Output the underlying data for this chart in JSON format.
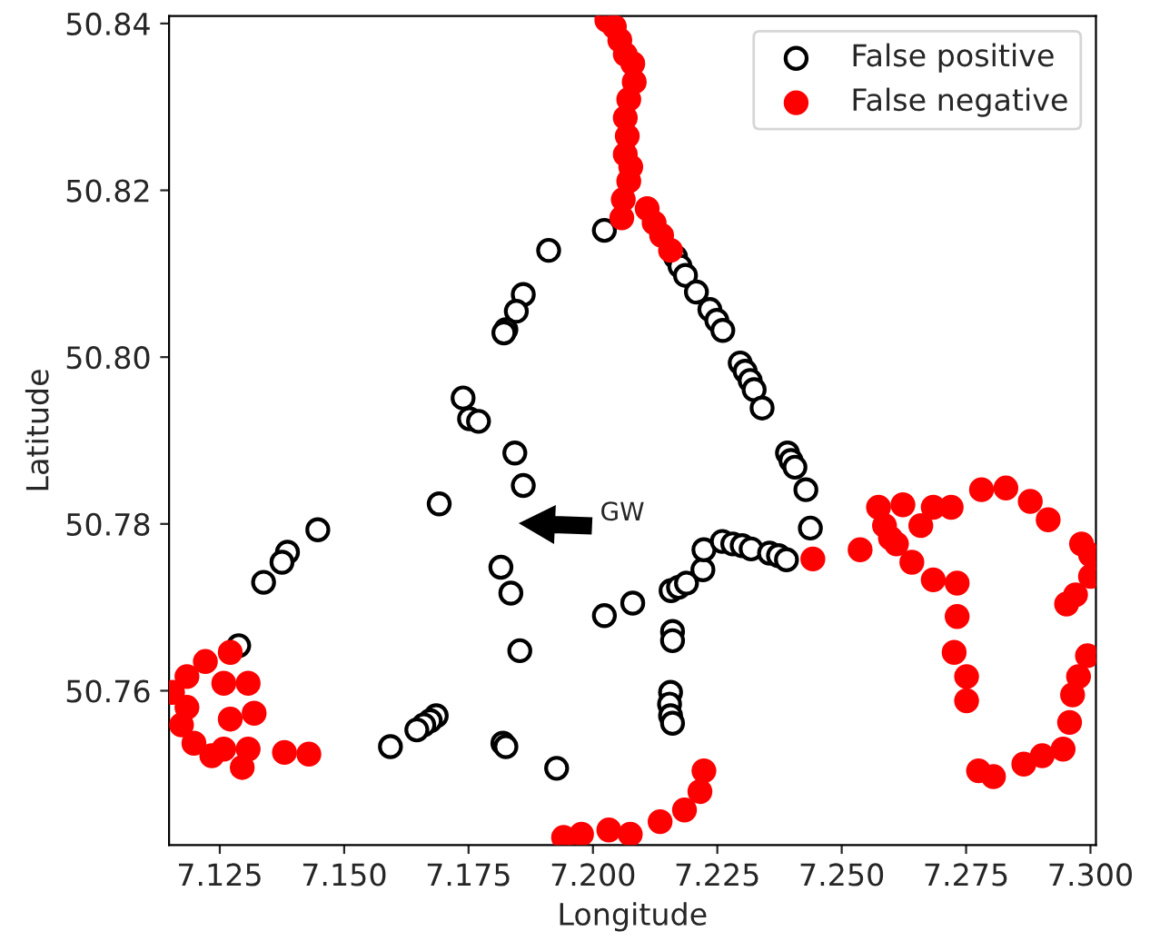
{
  "chart_data": {
    "type": "scatter",
    "xlabel": "Longitude",
    "ylabel": "Latitude",
    "xlim": [
      7.1148,
      7.3011
    ],
    "ylim": [
      50.7415,
      50.8409
    ],
    "xticks": [
      {
        "value": 7.125,
        "label": "7.125"
      },
      {
        "value": 7.15,
        "label": "7.150"
      },
      {
        "value": 7.175,
        "label": "7.175"
      },
      {
        "value": 7.2,
        "label": "7.200"
      },
      {
        "value": 7.225,
        "label": "7.225"
      },
      {
        "value": 7.25,
        "label": "7.250"
      },
      {
        "value": 7.275,
        "label": "7.275"
      },
      {
        "value": 7.3,
        "label": "7.300"
      }
    ],
    "yticks": [
      50.76,
      50.78,
      {
        "value": 50.8,
        "label": "50.80"
      },
      50.82,
      50.84
    ],
    "grid": false,
    "legend": "top right",
    "marker": "circle",
    "annotations": [
      "GW"
    ],
    "series": [
      {
        "name": "False positive",
        "color": "#ffffff",
        "x": [
          7.2023,
          7.1911,
          7.186,
          7.1846,
          7.1825,
          7.1821,
          7.1739,
          7.1752,
          7.177,
          7.2166,
          7.2175,
          7.2186,
          7.2208,
          7.2235,
          7.2249,
          7.2261,
          7.2296,
          7.2306,
          7.2316,
          7.2324,
          7.234,
          7.1843,
          7.186,
          7.1691,
          7.1447,
          7.1386,
          7.1375,
          7.1338,
          7.1288,
          7.1815,
          7.1835,
          7.2023,
          7.1853,
          7.1685,
          7.1673,
          7.166,
          7.1646,
          7.1593,
          7.1819,
          7.1825,
          7.1927,
          7.208,
          7.2391,
          7.2398,
          7.2406,
          7.2428,
          7.2437,
          7.2157,
          7.2172,
          7.2188,
          7.2221,
          7.2223,
          7.226,
          7.2281,
          7.23,
          7.2318,
          7.2355,
          7.2373,
          7.2389,
          7.216,
          7.216,
          7.2156,
          7.2154,
          7.2156,
          7.216
        ],
        "values": [
          50.8152,
          50.8128,
          50.8075,
          50.8055,
          50.8033,
          50.8029,
          50.7951,
          50.7926,
          50.7923,
          50.812,
          50.8109,
          50.8098,
          50.8078,
          50.8057,
          50.8044,
          50.8032,
          50.7993,
          50.7983,
          50.7972,
          50.7961,
          50.7939,
          50.7885,
          50.7846,
          50.7824,
          50.7793,
          50.7766,
          50.7754,
          50.773,
          50.7654,
          50.7748,
          50.7717,
          50.769,
          50.7648,
          50.757,
          50.7564,
          50.7559,
          50.7553,
          50.7533,
          50.7537,
          50.7533,
          50.7507,
          50.7705,
          50.7885,
          50.7876,
          50.7868,
          50.7841,
          50.7795,
          50.772,
          50.7724,
          50.7729,
          50.7745,
          50.7769,
          50.7779,
          50.7776,
          50.7774,
          50.777,
          50.7765,
          50.7762,
          50.7757,
          50.7671,
          50.766,
          50.7598,
          50.7584,
          50.757,
          50.7561
        ]
      },
      {
        "name": "False negative",
        "color": "#ff0000",
        "x": [
          7.2028,
          7.2043,
          7.2054,
          7.2065,
          7.208,
          7.2083,
          7.2072,
          7.2065,
          7.2069,
          7.2065,
          7.2076,
          7.2072,
          7.2061,
          7.2058,
          7.2109,
          7.2123,
          7.2138,
          7.2156,
          7.1221,
          7.1271,
          7.1184,
          7.1184,
          7.1198,
          7.1258,
          7.1271,
          7.1258,
          7.1307,
          7.1319,
          7.1307,
          7.138,
          7.1429,
          7.1295,
          7.1155,
          7.1234,
          7.1173,
          7.1941,
          7.1977,
          7.2032,
          7.2075,
          7.2135,
          7.2184,
          7.2215,
          7.2223,
          7.2442,
          7.2537,
          7.2598,
          7.2659,
          7.272,
          7.2781,
          7.283,
          7.2879,
          7.2915,
          7.2574,
          7.2586,
          7.2623,
          7.2684,
          7.261,
          7.2641,
          7.2684,
          7.2732,
          7.2732,
          7.2726,
          7.2751,
          7.2751,
          7.2775,
          7.2805,
          7.2866,
          7.2903,
          7.2945,
          7.2958,
          7.2964,
          7.2976,
          7.2994,
          7.2952,
          7.297,
          7.2982,
          7.3,
          7.3
        ],
        "values": [
          50.8404,
          50.8396,
          50.838,
          50.8363,
          50.8352,
          50.833,
          50.8309,
          50.8287,
          50.8265,
          50.8243,
          50.8228,
          50.8211,
          50.8189,
          50.8167,
          50.8178,
          50.8161,
          50.8146,
          50.8128,
          50.7635,
          50.7646,
          50.7617,
          50.758,
          50.7537,
          50.753,
          50.7566,
          50.7609,
          50.7609,
          50.7573,
          50.753,
          50.7526,
          50.7524,
          50.7508,
          50.7598,
          50.7522,
          50.7559,
          50.7424,
          50.7428,
          50.7433,
          50.7428,
          50.7443,
          50.7457,
          50.7479,
          50.7504,
          50.7758,
          50.7769,
          50.7783,
          50.7798,
          50.782,
          50.7841,
          50.7843,
          50.7827,
          50.7805,
          50.782,
          50.7798,
          50.7823,
          50.782,
          50.7776,
          50.7754,
          50.7733,
          50.7729,
          50.7689,
          50.7646,
          50.7617,
          50.7588,
          50.7504,
          50.7497,
          50.7512,
          50.7522,
          50.753,
          50.7562,
          50.7595,
          50.7617,
          50.7642,
          50.7704,
          50.7715,
          50.7776,
          50.7763,
          50.7737
        ]
      }
    ]
  }
}
